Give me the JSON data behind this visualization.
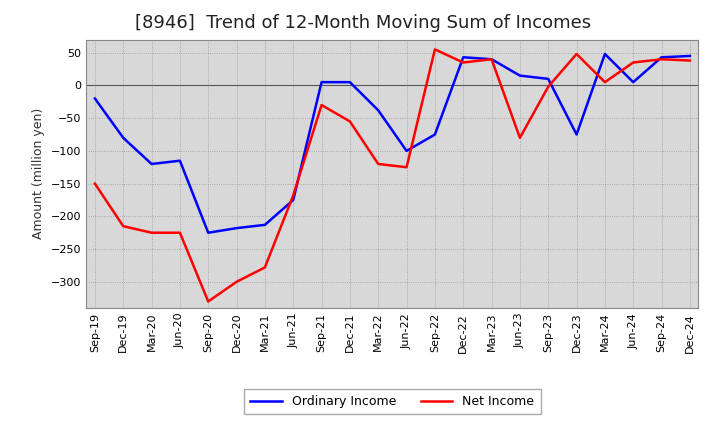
{
  "title": "[8946]  Trend of 12-Month Moving Sum of Incomes",
  "ylabel": "Amount (million yen)",
  "x_labels": [
    "Sep-19",
    "Dec-19",
    "Mar-20",
    "Jun-20",
    "Sep-20",
    "Dec-20",
    "Mar-21",
    "Jun-21",
    "Sep-21",
    "Dec-21",
    "Mar-22",
    "Jun-22",
    "Sep-22",
    "Dec-22",
    "Mar-23",
    "Jun-23",
    "Sep-23",
    "Dec-23",
    "Mar-24",
    "Jun-24",
    "Sep-24",
    "Dec-24"
  ],
  "ordinary_income": [
    -20,
    -80,
    -120,
    -115,
    -225,
    -218,
    -213,
    -175,
    5,
    5,
    -38,
    -100,
    -75,
    43,
    40,
    15,
    10,
    -75,
    48,
    5,
    43,
    45
  ],
  "net_income": [
    -150,
    -215,
    -225,
    -225,
    -330,
    -300,
    -278,
    -168,
    -30,
    -55,
    -120,
    -125,
    55,
    35,
    40,
    -80,
    -2,
    48,
    5,
    35,
    40,
    38
  ],
  "ordinary_color": "#0000ff",
  "net_color": "#ff0000",
  "ylim": [
    -340,
    70
  ],
  "yticks": [
    -300,
    -250,
    -200,
    -150,
    -100,
    -50,
    0,
    50
  ],
  "grid_color": "#999999",
  "bg_color": "#ffffff",
  "plot_bg_color": "#d8d8d8",
  "title_fontsize": 13,
  "label_fontsize": 9,
  "tick_fontsize": 8,
  "line_width": 1.8
}
